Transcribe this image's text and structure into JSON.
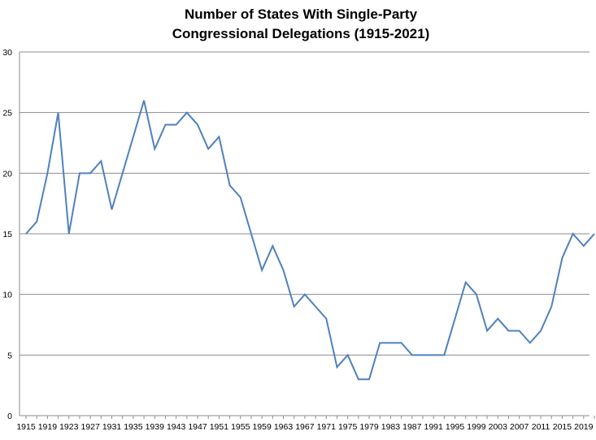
{
  "chart_data": {
    "type": "line",
    "title_lines": [
      "Number of States With Single-Party",
      "Congressional Delegations (1915-2021)"
    ],
    "xlabel": "",
    "ylabel": "",
    "ylim": [
      0,
      30
    ],
    "yticks": [
      0,
      5,
      10,
      15,
      20,
      25,
      30
    ],
    "grid": "horizontal",
    "legend": "none",
    "line_color": "#4F81BD",
    "x_tick_labels": [
      "1915",
      "1919",
      "1923",
      "1927",
      "1931",
      "1935",
      "1939",
      "1943",
      "1947",
      "1951",
      "1955",
      "1959",
      "1963",
      "1967",
      "1971",
      "1975",
      "1979",
      "1983",
      "1987",
      "1991",
      "1995",
      "1999",
      "2003",
      "2007",
      "2011",
      "2015",
      "2019"
    ],
    "x": [
      1915,
      1917,
      1919,
      1921,
      1923,
      1925,
      1927,
      1929,
      1931,
      1933,
      1935,
      1937,
      1939,
      1941,
      1943,
      1945,
      1947,
      1949,
      1951,
      1953,
      1955,
      1957,
      1959,
      1961,
      1963,
      1965,
      1967,
      1969,
      1971,
      1973,
      1975,
      1977,
      1979,
      1981,
      1983,
      1985,
      1987,
      1989,
      1991,
      1993,
      1995,
      1997,
      1999,
      2001,
      2003,
      2005,
      2007,
      2009,
      2011,
      2013,
      2015,
      2017,
      2019,
      2021
    ],
    "series": [
      {
        "values": [
          15,
          16,
          20,
          25,
          15,
          20,
          20,
          21,
          17,
          20,
          23,
          26,
          22,
          24,
          24,
          25,
          24,
          22,
          23,
          19,
          18,
          15,
          12,
          14,
          12,
          9,
          10,
          9,
          8,
          4,
          5,
          3,
          3,
          6,
          6,
          6,
          5,
          5,
          5,
          5,
          8,
          11,
          10,
          7,
          8,
          7,
          7,
          6,
          7,
          9,
          13,
          15,
          14,
          15
        ]
      }
    ]
  }
}
